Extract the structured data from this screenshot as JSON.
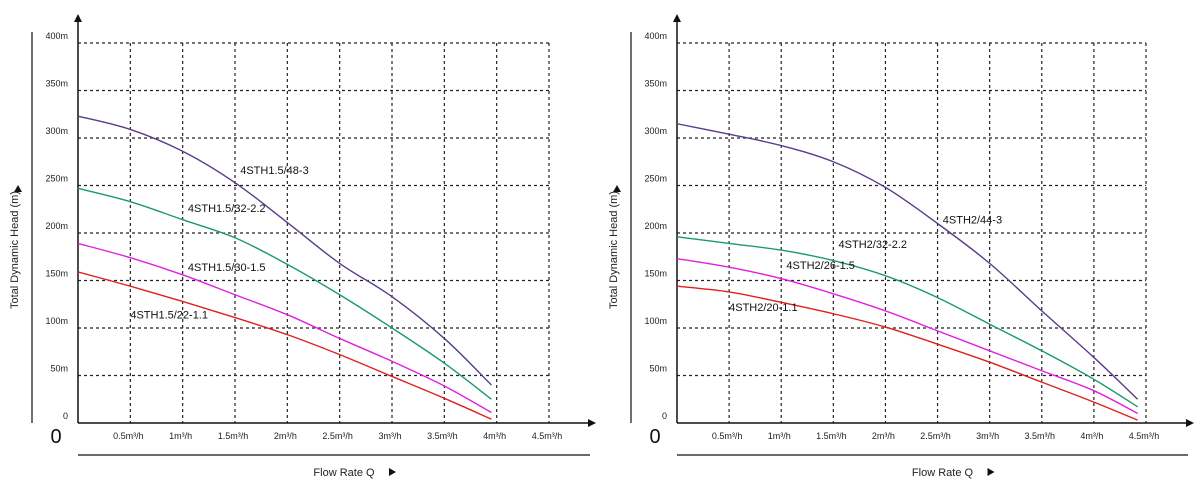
{
  "chart_data": [
    {
      "type": "line",
      "xlabel": "Flow Rate Q",
      "ylabel": "Total Dynamic Head (m)",
      "origin_label": "0",
      "x_tick_labels": [
        "0.5m³/h",
        "1m³/h",
        "1.5m³/h",
        "2m³/h",
        "2.5m³/h",
        "3m³/h",
        "3.5m³/h",
        "4m³/h",
        "4.5m³/h"
      ],
      "x_ticks": [
        0.5,
        1,
        1.5,
        2,
        2.5,
        3,
        3.5,
        4,
        4.5
      ],
      "y_tick_labels": [
        "0",
        "50m",
        "100m",
        "150m",
        "200m",
        "250m",
        "300m",
        "350m",
        "400m"
      ],
      "y_ticks": [
        0,
        50,
        100,
        150,
        200,
        250,
        300,
        350,
        400
      ],
      "xlim": [
        0,
        4.5
      ],
      "ylim": [
        0,
        400
      ],
      "grid": true,
      "x": [
        0,
        0.5,
        1,
        1.5,
        2,
        2.5,
        3,
        3.5,
        3.95
      ],
      "series": [
        {
          "name": "4STH1.5/48-3",
          "color": "#5b3c8c",
          "values": [
            323,
            309,
            286,
            253,
            211,
            168,
            133,
            89,
            40
          ]
        },
        {
          "name": "4STH1.5/32-2.2",
          "color": "#1a9a6a",
          "values": [
            247,
            233,
            214,
            195,
            167,
            135,
            100,
            63,
            25
          ]
        },
        {
          "name": "4STH1.5/30-1.5",
          "color": "#e020e0",
          "values": [
            189,
            174,
            156,
            135,
            114,
            89,
            65,
            39,
            11
          ]
        },
        {
          "name": "4STH1.5/22-1.1",
          "color": "#e02020",
          "values": [
            159,
            144,
            128,
            111,
            93,
            72,
            49,
            26,
            4
          ]
        }
      ]
    },
    {
      "type": "line",
      "xlabel": "Flow Rate Q",
      "ylabel": "Total Dynamic Head (m)",
      "origin_label": "0",
      "x_tick_labels": [
        "0.5m³/h",
        "1m³/h",
        "1.5m³/h",
        "2m³/h",
        "2.5m³/h",
        "3m³/h",
        "3.5m³/h",
        "4m³/h",
        "4.5m³/h"
      ],
      "x_ticks": [
        0.5,
        1,
        1.5,
        2,
        2.5,
        3,
        3.5,
        4,
        4.5
      ],
      "y_tick_labels": [
        "0",
        "50m",
        "100m",
        "150m",
        "200m",
        "250m",
        "300m",
        "350m",
        "400m"
      ],
      "y_ticks": [
        0,
        50,
        100,
        150,
        200,
        250,
        300,
        350,
        400
      ],
      "xlim": [
        0,
        4.5
      ],
      "ylim": [
        0,
        400
      ],
      "grid": true,
      "x": [
        0,
        0.5,
        1,
        1.5,
        2,
        2.5,
        3,
        3.5,
        4,
        4.42
      ],
      "series": [
        {
          "name": "4STH2/44-3",
          "color": "#5b3c8c",
          "values": [
            315,
            304,
            292,
            275,
            248,
            210,
            168,
            118,
            69,
            25
          ]
        },
        {
          "name": "4STH2/32-2.2",
          "color": "#1a9a6a",
          "values": [
            196,
            189,
            182,
            171,
            155,
            132,
            104,
            76,
            46,
            17
          ]
        },
        {
          "name": "4STH2/26-1.5",
          "color": "#e020e0",
          "values": [
            173,
            164,
            152,
            136,
            118,
            97,
            76,
            55,
            34,
            10
          ]
        },
        {
          "name": "4STH2/20-1.1",
          "color": "#e02020",
          "values": [
            144,
            138,
            127,
            115,
            101,
            83,
            64,
            43,
            22,
            3
          ]
        }
      ]
    }
  ]
}
